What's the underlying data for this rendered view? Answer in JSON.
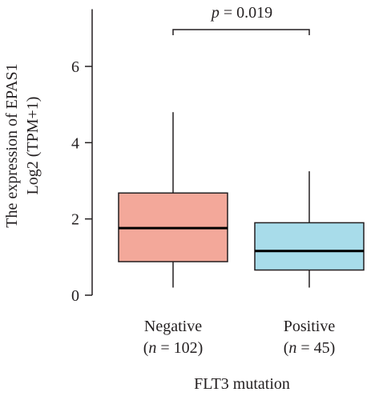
{
  "chart_data": {
    "type": "boxplot",
    "annotation": {
      "prefix": "p",
      "text": " = 0.019"
    },
    "ylabel_line1": "The expression of EPAS1",
    "ylabel_line2": "Log2 (TPM+1)",
    "xlabel": "FLT3 mutation",
    "ylim": [
      0,
      7.5
    ],
    "yticks": [
      0,
      2,
      4,
      6
    ],
    "ytick_labels": [
      "0",
      "2",
      "4",
      "6"
    ],
    "groups": [
      {
        "label": "Negative",
        "n_label": {
          "open": "(",
          "n": "n",
          "rest": " = 102)"
        },
        "color": "#f3a89a",
        "whisker_low": 0.2,
        "q1": 0.88,
        "median": 1.76,
        "q3": 2.68,
        "whisker_high": 4.8
      },
      {
        "label": "Positive",
        "n_label": {
          "open": "(",
          "n": "n",
          "rest": " = 45)"
        },
        "color": "#a8dcea",
        "whisker_low": 0.2,
        "q1": 0.66,
        "median": 1.16,
        "q3": 1.9,
        "whisker_high": 3.25
      }
    ]
  }
}
